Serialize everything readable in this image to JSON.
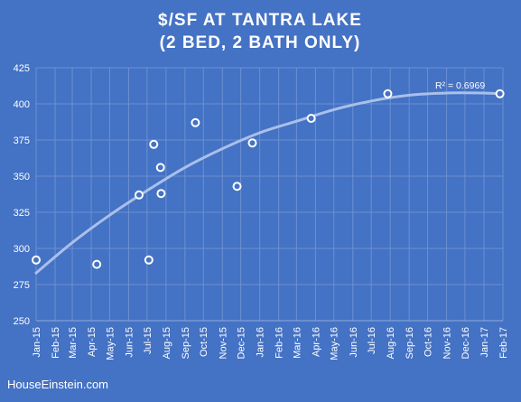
{
  "chart_data": {
    "type": "scatter",
    "title": [
      "$/SF AT TANTRA LAKE",
      "(2 BED, 2 BATH ONLY)"
    ],
    "xlabel": "",
    "ylabel": "",
    "x_ticks": [
      "Jan-15",
      "Feb-15",
      "Mar-15",
      "Apr-15",
      "May-15",
      "Jun-15",
      "Jul-15",
      "Aug-15",
      "Sep-15",
      "Oct-15",
      "Nov-15",
      "Dec-15",
      "Jan-16",
      "Feb-16",
      "Mar-16",
      "Apr-16",
      "May-16",
      "Jun-16",
      "Jul-16",
      "Aug-16",
      "Sep-16",
      "Oct-16",
      "Nov-16",
      "Dec-16",
      "Jan-17",
      "Feb-17"
    ],
    "ylim": [
      250,
      425
    ],
    "y_ticks": [
      250,
      275,
      300,
      325,
      350,
      375,
      400,
      425
    ],
    "grid": "vertical and horizontal",
    "points": [
      {
        "x": "2015-01-01",
        "y": 292
      },
      {
        "x": "2015-04-10",
        "y": 289
      },
      {
        "x": "2015-06-18",
        "y": 337
      },
      {
        "x": "2015-07-04",
        "y": 292
      },
      {
        "x": "2015-07-12",
        "y": 372
      },
      {
        "x": "2015-07-23",
        "y": 356
      },
      {
        "x": "2015-07-24",
        "y": 338
      },
      {
        "x": "2015-09-18",
        "y": 387
      },
      {
        "x": "2015-11-25",
        "y": 343
      },
      {
        "x": "2015-12-20",
        "y": 373
      },
      {
        "x": "2016-03-25",
        "y": 390
      },
      {
        "x": "2016-07-28",
        "y": 407
      },
      {
        "x": "2017-01-27",
        "y": 407
      }
    ],
    "trendline": {
      "type": "polynomial",
      "r_squared_label": "R² = 0.6969",
      "samples": [
        {
          "x": "2015-01-01",
          "y": 283
        },
        {
          "x": "2015-03-01",
          "y": 304
        },
        {
          "x": "2015-05-01",
          "y": 323
        },
        {
          "x": "2015-07-01",
          "y": 340
        },
        {
          "x": "2015-09-01",
          "y": 356
        },
        {
          "x": "2015-11-01",
          "y": 369
        },
        {
          "x": "2016-01-01",
          "y": 380
        },
        {
          "x": "2016-03-01",
          "y": 388
        },
        {
          "x": "2016-05-01",
          "y": 396
        },
        {
          "x": "2016-07-01",
          "y": 402
        },
        {
          "x": "2016-09-01",
          "y": 406
        },
        {
          "x": "2016-11-01",
          "y": 407.5
        },
        {
          "x": "2017-01-01",
          "y": 407.5
        },
        {
          "x": "2017-01-27",
          "y": 407
        }
      ]
    },
    "colors": {
      "background": "#4472c4",
      "marker": "#ffffff",
      "trendline": "#a9c0ea",
      "grid": "#6c90d2"
    }
  },
  "footer": "HouseEinstein.com"
}
